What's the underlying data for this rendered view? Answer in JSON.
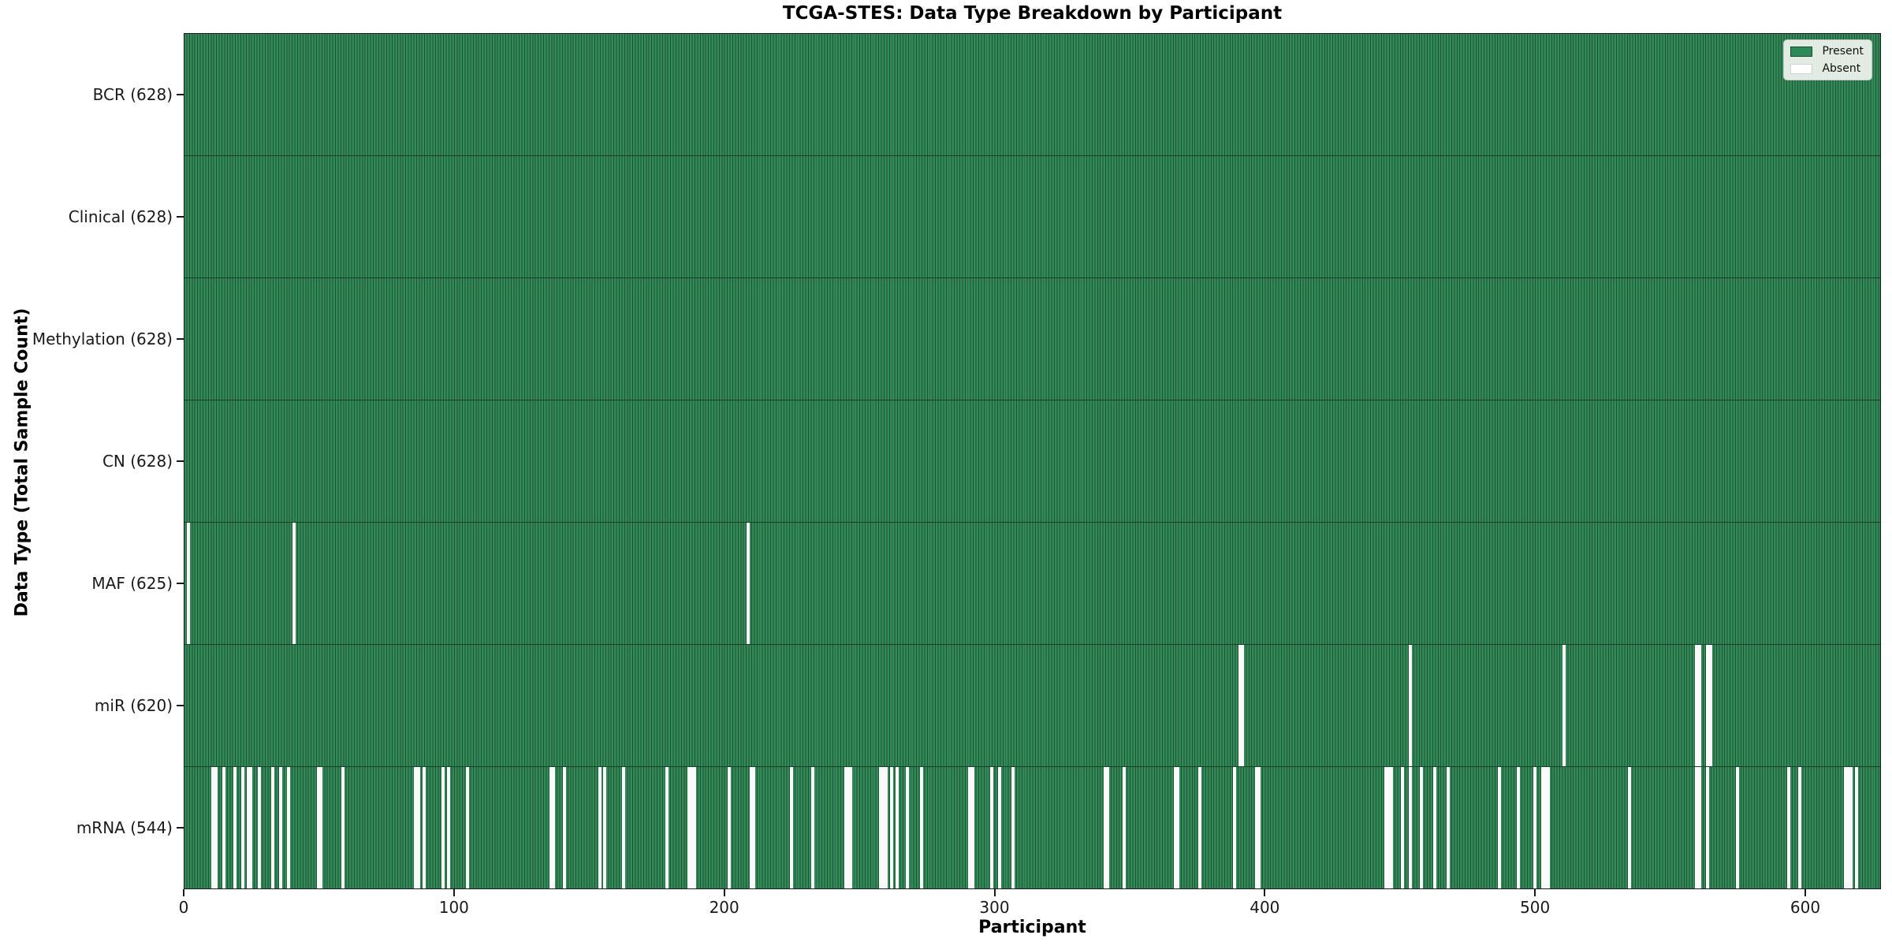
{
  "title": "TCGA-STES: Data Type Breakdown by Participant",
  "xlabel": "Participant",
  "ylabel": "Data Type (Total Sample Count)",
  "legend": {
    "position": "upper right",
    "entries": [
      {
        "label": "Present",
        "color": "#2E8B57"
      },
      {
        "label": "Absent",
        "color": "#FFFFFF"
      }
    ]
  },
  "colors": {
    "present_fill": "#338A58",
    "bar_edge": "#1D5335",
    "absent_fill": "#FAFAFA",
    "spine": "#1A1A1A",
    "legend_bg": "#F1F5F0"
  },
  "chart_data": {
    "type": "heatmap",
    "title": "TCGA-STES: Data Type Breakdown by Participant",
    "xlabel": "Participant",
    "ylabel": "Data Type (Total Sample Count)",
    "x_ticks": [
      0,
      100,
      200,
      300,
      400,
      500,
      600
    ],
    "x_range": [
      0,
      628
    ],
    "participants_total": 628,
    "grid": false,
    "legend_position": "upper right",
    "legend": [
      {
        "label": "Present",
        "color": "#2E8B57"
      },
      {
        "label": "Absent",
        "color": "#FFFFFF"
      }
    ],
    "rows": [
      {
        "data_type": "BCR",
        "count": 628,
        "label": "BCR (628)",
        "absent_participants": []
      },
      {
        "data_type": "Clinical",
        "count": 628,
        "label": "Clinical (628)",
        "absent_participants": []
      },
      {
        "data_type": "Methylation",
        "count": 628,
        "label": "Methylation (628)",
        "absent_participants": []
      },
      {
        "data_type": "CN",
        "count": 628,
        "label": "CN (628)",
        "absent_participants": []
      },
      {
        "data_type": "MAF",
        "count": 625,
        "label": "MAF (625)",
        "absent_participants": [
          1,
          40,
          208
        ]
      },
      {
        "data_type": "miR",
        "count": 620,
        "label": "miR (620)",
        "absent_participants": [
          390,
          391,
          453,
          510,
          559,
          560,
          563,
          564
        ]
      },
      {
        "data_type": "mRNA",
        "count": 544,
        "label": "mRNA (544)",
        "absent_participants": [
          10,
          11,
          14,
          18,
          21,
          23,
          24,
          27,
          32,
          35,
          38,
          49,
          50,
          58,
          85,
          86,
          88,
          95,
          97,
          104,
          135,
          136,
          140,
          153,
          155,
          162,
          178,
          186,
          187,
          188,
          201,
          209,
          210,
          224,
          232,
          244,
          245,
          246,
          257,
          258,
          259,
          261,
          263,
          267,
          272,
          290,
          291,
          298,
          301,
          306,
          340,
          341,
          347,
          366,
          367,
          375,
          388,
          396,
          397,
          444,
          445,
          446,
          450,
          453,
          457,
          462,
          467,
          486,
          493,
          499,
          502,
          503,
          504,
          534,
          559,
          560,
          563,
          574,
          593,
          597,
          614,
          615,
          616,
          618
        ]
      }
    ]
  }
}
